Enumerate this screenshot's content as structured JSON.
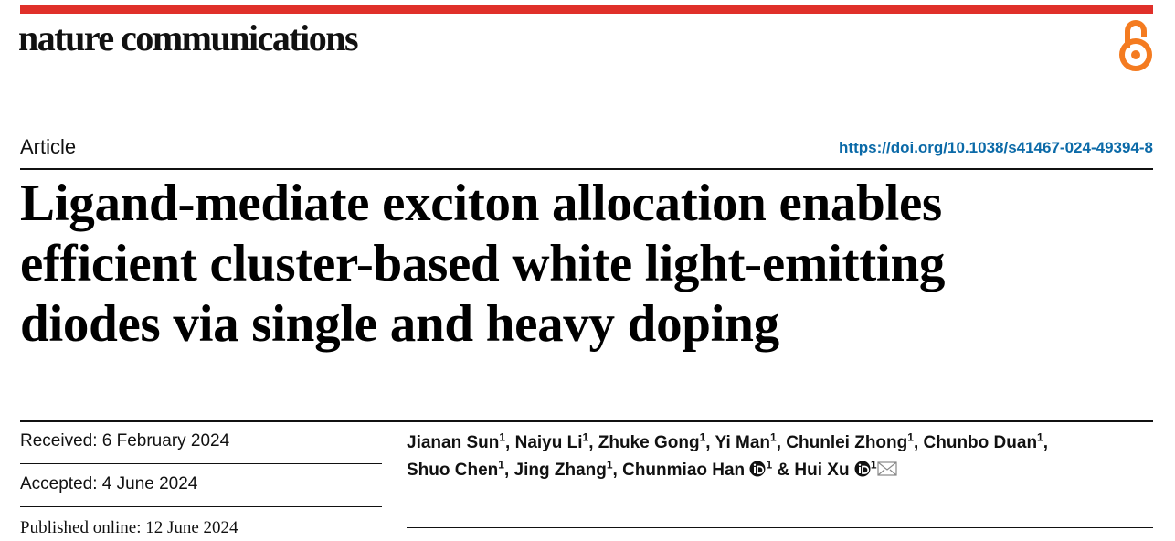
{
  "journal": "nature communications",
  "article_type": "Article",
  "doi": "https://doi.org/10.1038/s41467-024-49394-8",
  "title_lines": [
    "Ligand-mediate exciton allocation enables",
    "efficient cluster-based white light-emitting",
    "diodes via single and heavy doping"
  ],
  "dates": {
    "received": "Received: 6 February 2024",
    "accepted": "Accepted: 4 June 2024",
    "published": "Published online: 12 June 2024"
  },
  "authors": [
    {
      "name": "Jianan Sun",
      "affiliation": "1",
      "after": ", "
    },
    {
      "name": "Naiyu Li",
      "affiliation": "1",
      "after": ", "
    },
    {
      "name": "Zhuke Gong",
      "affiliation": "1",
      "after": ", "
    },
    {
      "name": "Yi Man",
      "affiliation": "1",
      "after": ", "
    },
    {
      "name": "Chunlei Zhong",
      "affiliation": "1",
      "after": ", "
    },
    {
      "name": "Chunbo Duan",
      "affiliation": "1",
      "after": ","
    },
    {
      "name": "Shuo Chen",
      "affiliation": "1",
      "after": ", "
    },
    {
      "name": "Jing Zhang",
      "affiliation": "1",
      "after": ", "
    },
    {
      "name": "Chunmiao Han",
      "affiliation": "1",
      "orcid": true,
      "after": " & "
    },
    {
      "name": "Hui Xu",
      "affiliation": "1",
      "orcid": true,
      "email": true
    }
  ]
}
